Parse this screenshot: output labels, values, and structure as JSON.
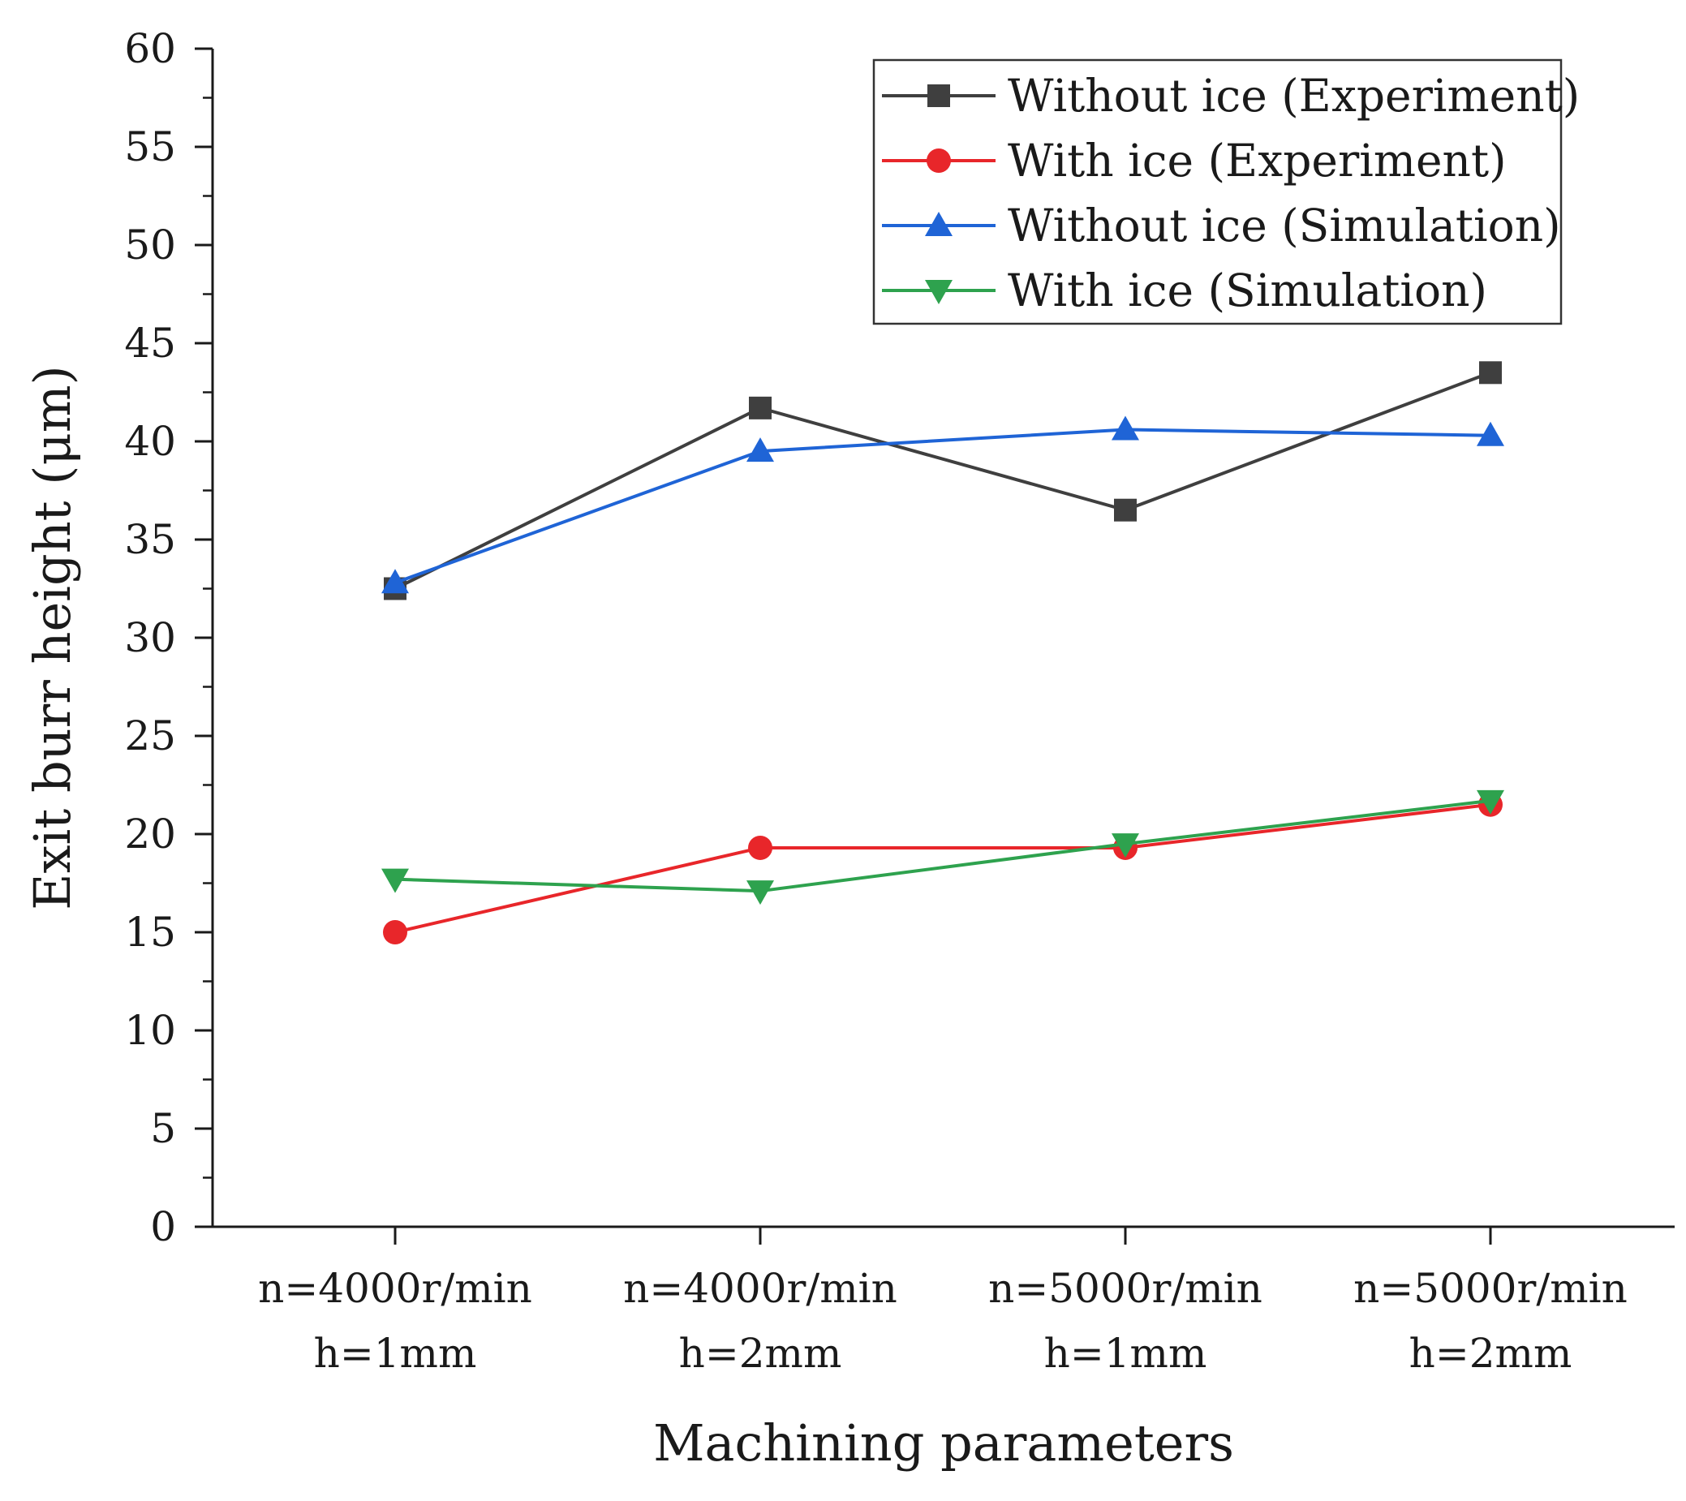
{
  "chart_data": {
    "type": "line",
    "title": "",
    "xlabel": "Machining parameters",
    "ylabel": "Exit burr height (μm)",
    "ylim": [
      0,
      60
    ],
    "yticks": [
      0,
      5,
      10,
      15,
      20,
      25,
      30,
      35,
      40,
      45,
      50,
      55,
      60
    ],
    "categories": [
      {
        "line1": "n=4000r/min",
        "line2": "h=1mm"
      },
      {
        "line1": "n=4000r/min",
        "line2": "h=2mm"
      },
      {
        "line1": "n=5000r/min",
        "line2": "h=1mm"
      },
      {
        "line1": "n=5000r/min",
        "line2": "h=2mm"
      }
    ],
    "legend_position": "top-right",
    "series": [
      {
        "name": "Without ice (Experiment)",
        "color": "#3f3f3f",
        "marker": "square",
        "values": [
          32.5,
          41.7,
          36.5,
          43.5
        ]
      },
      {
        "name": "With ice (Experiment)",
        "color": "#e8262a",
        "marker": "circle",
        "values": [
          15.0,
          19.3,
          19.3,
          21.5
        ]
      },
      {
        "name": "Without ice (Simulation)",
        "color": "#1f64d6",
        "marker": "triangle-up",
        "values": [
          32.8,
          39.5,
          40.6,
          40.3
        ]
      },
      {
        "name": "With ice (Simulation)",
        "color": "#2ea24e",
        "marker": "triangle-down",
        "values": [
          17.7,
          17.1,
          19.5,
          21.7
        ]
      }
    ]
  }
}
